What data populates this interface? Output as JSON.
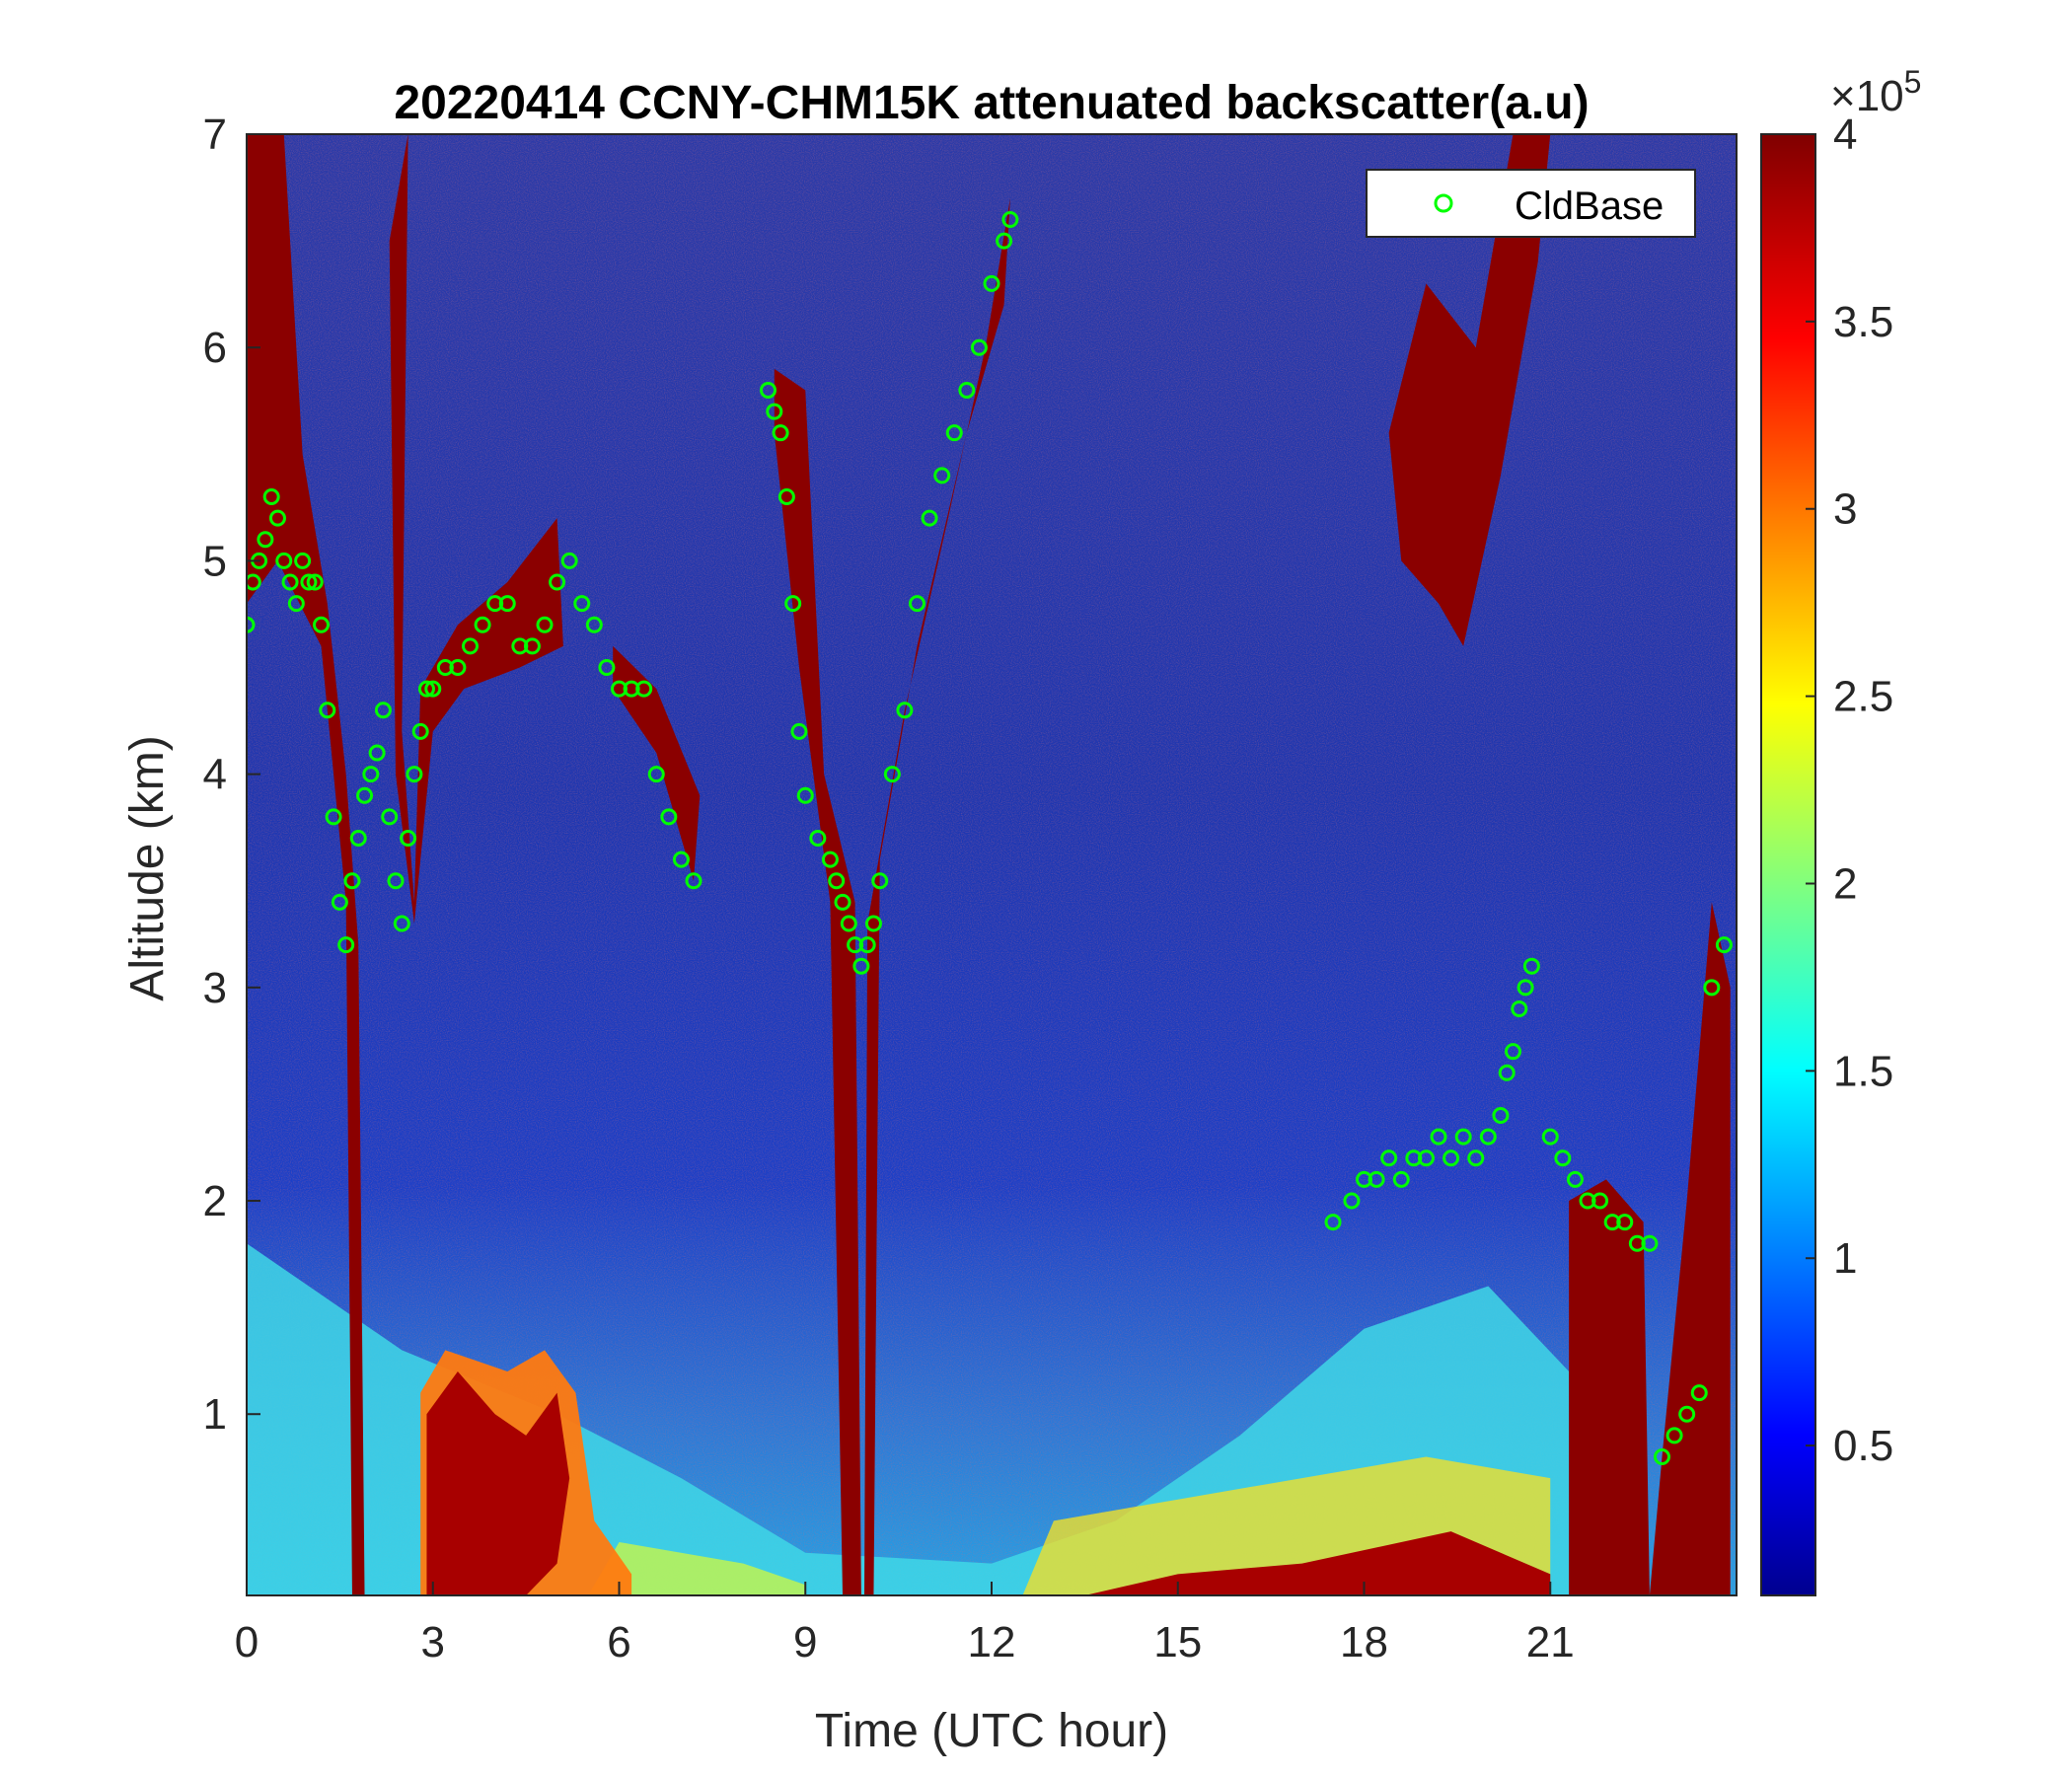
{
  "chart_data": {
    "type": "heatmap",
    "title": "20220414 CCNY-CHM15K attenuated backscatter(a.u)",
    "xlabel": "Time (UTC hour)",
    "ylabel": "Altitude (km)",
    "xlim": [
      0,
      24
    ],
    "ylim": [
      0.15,
      7
    ],
    "x_ticks": [
      0,
      3,
      6,
      9,
      12,
      15,
      18,
      21
    ],
    "y_ticks": [
      1,
      2,
      3,
      4,
      5,
      6,
      7
    ],
    "colorbar": {
      "clim": [
        0.1,
        4
      ],
      "ticks": [
        0.5,
        1,
        1.5,
        2,
        2.5,
        3,
        3.5,
        4
      ],
      "exponent_label": "×10",
      "exponent_power": "5",
      "colormap": "jet"
    },
    "legend": {
      "location": "top-right",
      "entries": [
        "CldBase"
      ]
    },
    "series": [
      {
        "name": "CldBase",
        "marker": "circle",
        "color": "#00ff00",
        "x": [
          0.0,
          0.1,
          0.2,
          0.3,
          0.4,
          0.5,
          0.6,
          0.7,
          0.8,
          0.9,
          1.0,
          1.1,
          1.2,
          1.3,
          1.4,
          1.5,
          1.6,
          1.7,
          1.8,
          1.9,
          2.0,
          2.1,
          2.2,
          2.3,
          2.4,
          2.5,
          2.6,
          2.7,
          2.8,
          2.9,
          3.0,
          3.2,
          3.4,
          3.6,
          3.8,
          4.0,
          4.2,
          4.4,
          4.6,
          4.8,
          5.0,
          5.2,
          5.4,
          5.6,
          5.8,
          6.0,
          6.2,
          6.4,
          6.6,
          6.8,
          7.0,
          7.2,
          8.4,
          8.5,
          8.6,
          8.7,
          8.8,
          8.9,
          9.0,
          9.2,
          9.4,
          9.5,
          9.6,
          9.7,
          9.8,
          9.9,
          10.0,
          10.1,
          10.2,
          10.4,
          10.6,
          10.8,
          11.0,
          11.2,
          11.4,
          11.6,
          11.8,
          12.0,
          12.2,
          12.3,
          17.5,
          17.8,
          18.0,
          18.2,
          18.4,
          18.6,
          18.8,
          19.0,
          19.2,
          19.4,
          19.6,
          19.8,
          20.0,
          20.2,
          20.3,
          20.4,
          20.5,
          20.6,
          20.7,
          21.0,
          21.2,
          21.4,
          21.6,
          21.8,
          22.0,
          22.2,
          22.4,
          22.6,
          22.8,
          23.0,
          23.2,
          23.4,
          23.6,
          23.8
        ],
        "y": [
          4.7,
          4.9,
          5.0,
          5.1,
          5.3,
          5.2,
          5.0,
          4.9,
          4.8,
          5.0,
          4.9,
          4.9,
          4.7,
          4.3,
          3.8,
          3.4,
          3.2,
          3.5,
          3.7,
          3.9,
          4.0,
          4.1,
          4.3,
          3.8,
          3.5,
          3.3,
          3.7,
          4.0,
          4.2,
          4.4,
          4.4,
          4.5,
          4.5,
          4.6,
          4.7,
          4.8,
          4.8,
          4.6,
          4.6,
          4.7,
          4.9,
          5.0,
          4.8,
          4.7,
          4.5,
          4.4,
          4.4,
          4.4,
          4.0,
          3.8,
          3.6,
          3.5,
          5.8,
          5.7,
          5.6,
          5.3,
          4.8,
          4.2,
          3.9,
          3.7,
          3.6,
          3.5,
          3.4,
          3.3,
          3.2,
          3.1,
          3.2,
          3.3,
          3.5,
          4.0,
          4.3,
          4.8,
          5.2,
          5.4,
          5.6,
          5.8,
          6.0,
          6.3,
          6.5,
          6.6,
          1.9,
          2.0,
          2.1,
          2.1,
          2.2,
          2.1,
          2.2,
          2.2,
          2.3,
          2.2,
          2.3,
          2.2,
          2.3,
          2.4,
          2.6,
          2.7,
          2.9,
          3.0,
          3.1,
          2.3,
          2.2,
          2.1,
          2.0,
          2.0,
          1.9,
          1.9,
          1.8,
          1.8,
          0.8,
          0.9,
          1.0,
          1.1,
          3.0,
          3.2
        ]
      }
    ]
  }
}
